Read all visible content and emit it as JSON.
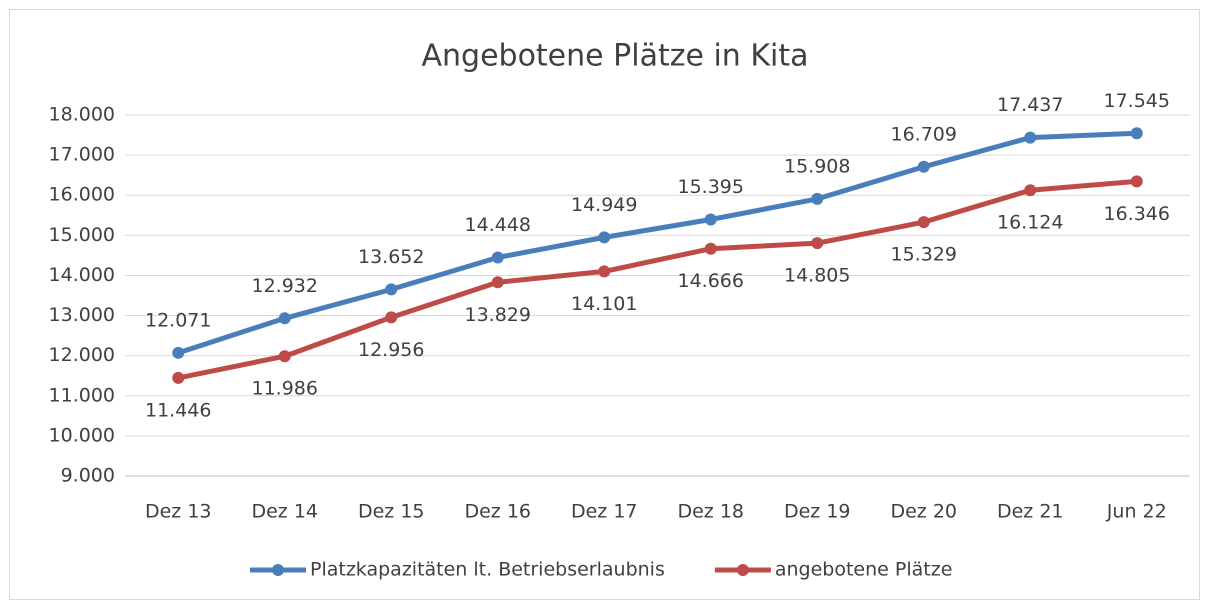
{
  "chart_data": {
    "type": "line",
    "title": "Angebotene Plätze in Kita",
    "categories": [
      "Dez 13",
      "Dez 14",
      "Dez 15",
      "Dez 16",
      "Dez 17",
      "Dez 18",
      "Dez 19",
      "Dez 20",
      "Dez 21",
      "Jun 22"
    ],
    "series": [
      {
        "name": "Platzkapazitäten lt. Betriebserlaubnis",
        "color": "#4a7ebb",
        "values": [
          12071,
          12932,
          13652,
          14448,
          14949,
          15395,
          15908,
          16709,
          17437,
          17545
        ],
        "value_labels": [
          "12.071",
          "12.932",
          "13.652",
          "14.448",
          "14.949",
          "15.395",
          "15.908",
          "16.709",
          "17.437",
          "17.545"
        ]
      },
      {
        "name": "angebotene Plätze",
        "color": "#be4b48",
        "values": [
          11446,
          11986,
          12956,
          13829,
          14101,
          14666,
          14805,
          15329,
          16124,
          16346
        ],
        "value_labels": [
          "11.446",
          "11.986",
          "12.956",
          "13.829",
          "14.101",
          "14.666",
          "14.805",
          "15.329",
          "16.124",
          "16.346"
        ]
      }
    ],
    "ylim": [
      9000,
      18000
    ],
    "yticks": [
      {
        "value": 9000,
        "label": "9.000"
      },
      {
        "value": 10000,
        "label": "10.000"
      },
      {
        "value": 11000,
        "label": "11.000"
      },
      {
        "value": 12000,
        "label": "12.000"
      },
      {
        "value": 13000,
        "label": "13.000"
      },
      {
        "value": 14000,
        "label": "14.000"
      },
      {
        "value": 15000,
        "label": "15.000"
      },
      {
        "value": 16000,
        "label": "16.000"
      },
      {
        "value": 17000,
        "label": "17.000"
      },
      {
        "value": 18000,
        "label": "18.000"
      }
    ],
    "grid": true,
    "legend": "bottom"
  }
}
